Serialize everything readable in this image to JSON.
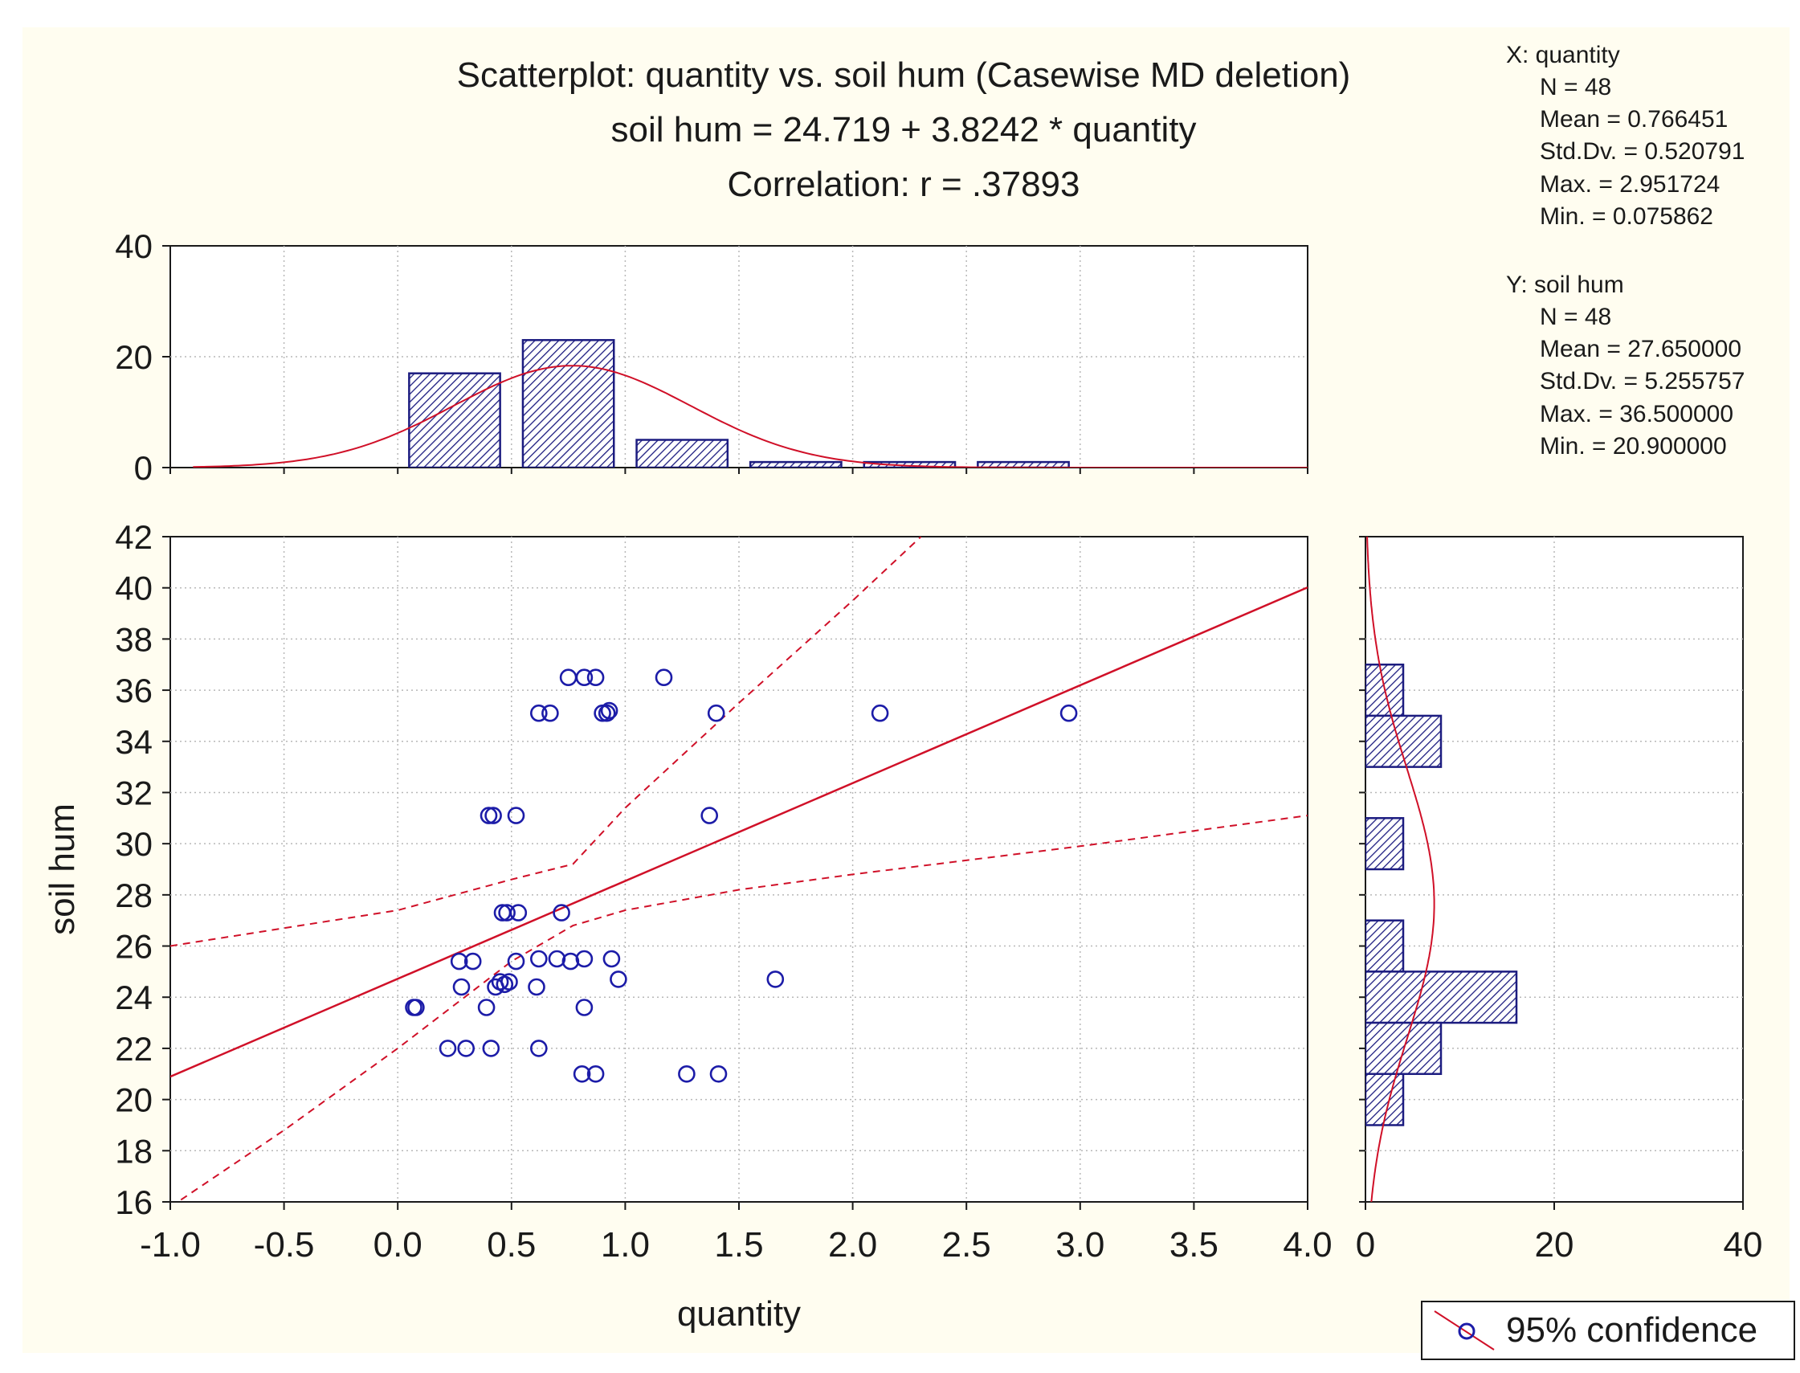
{
  "chart_data": {
    "type": "scatter",
    "title": "Scatterplot: quantity vs. soil hum (Casewise MD deletion)",
    "equation": "soil hum = 24.719 + 3.8242 * quantity",
    "correlation": "Correlation: r = .37893",
    "xlabel": "quantity",
    "ylabel": "soil hum",
    "xlim": [
      -1.0,
      4.0
    ],
    "ylim": [
      16,
      42
    ],
    "x_ticks": [
      "-1.0",
      "-0.5",
      "0.0",
      "0.5",
      "1.0",
      "1.5",
      "2.0",
      "2.5",
      "3.0",
      "3.5",
      "4.0"
    ],
    "y_ticks": [
      "16",
      "18",
      "20",
      "22",
      "24",
      "26",
      "28",
      "30",
      "32",
      "34",
      "36",
      "38",
      "40",
      "42"
    ],
    "grid": true,
    "regression": {
      "intercept": 24.719,
      "slope": 3.8242
    },
    "confidence": {
      "label": "95% confidence",
      "upper": [
        [
          -1.0,
          26.0
        ],
        [
          0.0,
          27.4
        ],
        [
          0.5,
          28.6
        ],
        [
          0.77,
          29.2
        ],
        [
          1.0,
          31.4
        ],
        [
          1.5,
          35.5
        ],
        [
          2.0,
          39.5
        ],
        [
          2.3,
          42.0
        ]
      ],
      "lower": [
        [
          -1.0,
          15.8
        ],
        [
          -0.5,
          18.8
        ],
        [
          0.0,
          22.0
        ],
        [
          0.5,
          25.4
        ],
        [
          0.77,
          26.8
        ],
        [
          1.0,
          27.4
        ],
        [
          1.5,
          28.2
        ],
        [
          2.0,
          28.8
        ],
        [
          3.0,
          29.9
        ],
        [
          4.0,
          31.1
        ]
      ]
    },
    "points": [
      [
        0.07,
        23.6
      ],
      [
        0.08,
        23.6
      ],
      [
        0.22,
        22.0
      ],
      [
        0.27,
        25.4
      ],
      [
        0.28,
        24.4
      ],
      [
        0.3,
        22.0
      ],
      [
        0.33,
        25.4
      ],
      [
        0.39,
        23.6
      ],
      [
        0.4,
        31.1
      ],
      [
        0.41,
        22.0
      ],
      [
        0.42,
        31.1
      ],
      [
        0.43,
        24.4
      ],
      [
        0.45,
        24.6
      ],
      [
        0.46,
        27.3
      ],
      [
        0.47,
        24.5
      ],
      [
        0.48,
        27.3
      ],
      [
        0.49,
        24.6
      ],
      [
        0.52,
        25.4
      ],
      [
        0.52,
        31.1
      ],
      [
        0.53,
        27.3
      ],
      [
        0.61,
        24.4
      ],
      [
        0.62,
        35.1
      ],
      [
        0.62,
        22.0
      ],
      [
        0.62,
        25.5
      ],
      [
        0.67,
        35.1
      ],
      [
        0.7,
        25.5
      ],
      [
        0.72,
        27.3
      ],
      [
        0.75,
        36.5
      ],
      [
        0.76,
        25.4
      ],
      [
        0.81,
        21.0
      ],
      [
        0.82,
        36.5
      ],
      [
        0.82,
        23.6
      ],
      [
        0.82,
        25.5
      ],
      [
        0.87,
        36.5
      ],
      [
        0.87,
        21.0
      ],
      [
        0.9,
        35.1
      ],
      [
        0.92,
        35.1
      ],
      [
        0.93,
        35.2
      ],
      [
        0.94,
        25.5
      ],
      [
        0.97,
        24.7
      ],
      [
        1.17,
        36.5
      ],
      [
        1.27,
        21.0
      ],
      [
        1.37,
        31.1
      ],
      [
        1.4,
        35.1
      ],
      [
        1.41,
        21.0
      ],
      [
        1.66,
        24.7
      ],
      [
        2.12,
        35.1
      ],
      [
        2.95,
        35.1
      ]
    ],
    "top_histogram": {
      "ylim": [
        0,
        40
      ],
      "y_ticks": [
        "0",
        "20",
        "40"
      ],
      "bins": [
        [
          0.05,
          0.45,
          17
        ],
        [
          0.55,
          0.95,
          23
        ],
        [
          1.05,
          1.45,
          5
        ],
        [
          1.55,
          1.95,
          1
        ],
        [
          2.05,
          2.45,
          1
        ],
        [
          2.55,
          2.95,
          1
        ]
      ],
      "normal": {
        "mean": 0.766451,
        "sd": 0.520791,
        "n": 48,
        "binwidth": 0.5
      }
    },
    "right_histogram": {
      "xlim": [
        0,
        40
      ],
      "x_ticks": [
        "0",
        "20",
        "40"
      ],
      "bins": [
        [
          35.0,
          37.0,
          4
        ],
        [
          33.0,
          35.0,
          8
        ],
        [
          29.0,
          31.0,
          4
        ],
        [
          25.0,
          27.0,
          4
        ],
        [
          23.0,
          25.0,
          16
        ],
        [
          21.0,
          23.0,
          8
        ],
        [
          19.0,
          21.0,
          4
        ]
      ],
      "normal": {
        "mean": 27.65,
        "sd": 5.255757,
        "n": 48,
        "binwidth": 2
      }
    },
    "stats_x": {
      "header": "X:  quantity",
      "lines": [
        "N = 48",
        "Mean = 0.766451",
        "Std.Dv. = 0.520791",
        "Max. = 2.951724",
        "Min. = 0.075862"
      ]
    },
    "stats_y": {
      "header": "Y:  soil hum",
      "lines": [
        "N = 48",
        "Mean = 27.650000",
        "Std.Dv. = 5.255757",
        "Max. = 36.500000",
        "Min. = 20.900000"
      ]
    },
    "legend": {
      "label": "95% confidence",
      "position": "bottom-right"
    },
    "colors": {
      "background": "#fffdf0",
      "points": "#1c1ca8",
      "fit": "#d01028",
      "bars": "#1c1c80",
      "text": "#1a1a1a",
      "grid": "#b8b8b8"
    }
  }
}
